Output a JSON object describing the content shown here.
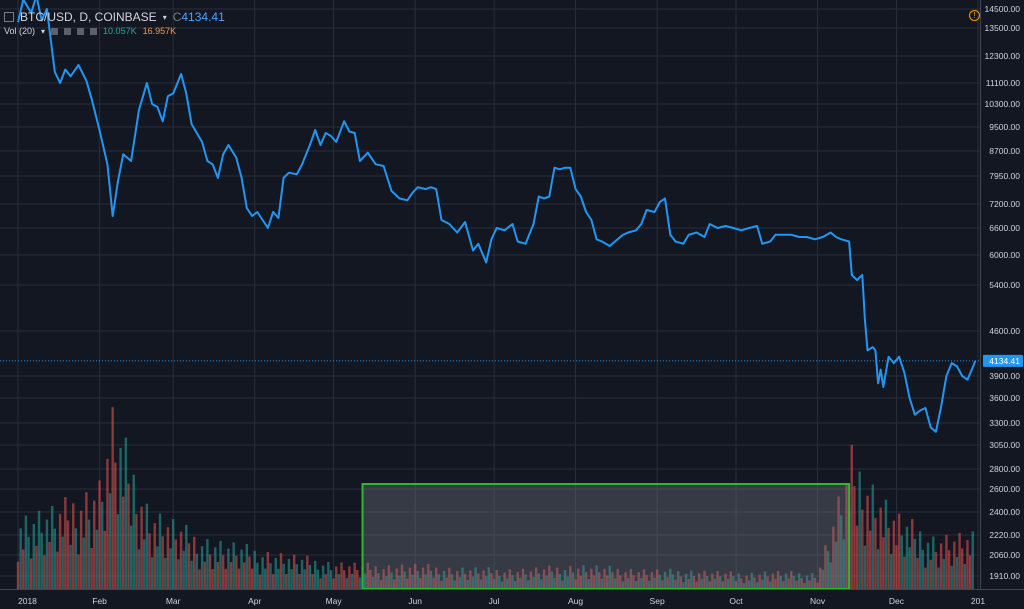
{
  "header": {
    "symbol": "BTC/USD, D, COINBASE",
    "ohlc_prefix": "C",
    "last": "4134.41",
    "vol_label": "Vol (20)",
    "vol_value1": "10.057K",
    "vol_value2": "16.957K",
    "menu_icon": "menu-icon",
    "warn_icon": "warning-icon"
  },
  "colors": {
    "background": "#131722",
    "grid": "#2a2e39",
    "line": "#2196f3",
    "vol_up": "#26a69a",
    "vol_down": "#ef5350",
    "highlight": "#2eb82e",
    "text": "#d1d4dc",
    "price_tag": "#2196f3"
  },
  "chart_data": {
    "type": "line",
    "symbol": "BTC/USD",
    "interval": "D",
    "exchange": "COINBASE",
    "x_labels": [
      "2018",
      "Feb",
      "Mar",
      "Apr",
      "May",
      "Jun",
      "Jul",
      "Aug",
      "Sep",
      "Oct",
      "Nov",
      "Dec",
      "201"
    ],
    "y_ticks": [
      "14500.00",
      "13500.00",
      "12300.00",
      "11100.00",
      "10300.00",
      "9500.00",
      "8700.00",
      "7950.00",
      "7200.00",
      "6600.00",
      "6000.00",
      "5400.00",
      "4600.00",
      "3900.00",
      "3600.00",
      "3300.00",
      "3050.00",
      "2800.00",
      "2600.00",
      "2400.00",
      "2220.00",
      "2060.00",
      "1910.00"
    ],
    "last_price": "4134.41",
    "grid": true,
    "series": [
      {
        "points": [
          [
            "2018-01-01",
            13800
          ],
          [
            "2018-01-03",
            15000
          ],
          [
            "2018-01-06",
            14300
          ],
          [
            "2018-01-08",
            15200
          ],
          [
            "2018-01-10",
            13900
          ],
          [
            "2018-01-12",
            14500
          ],
          [
            "2018-01-15",
            11600
          ],
          [
            "2018-01-17",
            11100
          ],
          [
            "2018-01-19",
            11700
          ],
          [
            "2018-01-21",
            11400
          ],
          [
            "2018-01-24",
            11900
          ],
          [
            "2018-01-27",
            11200
          ],
          [
            "2018-01-29",
            10500
          ],
          [
            "2018-02-01",
            9400
          ],
          [
            "2018-02-04",
            8300
          ],
          [
            "2018-02-06",
            6900
          ],
          [
            "2018-02-08",
            7800
          ],
          [
            "2018-02-10",
            8600
          ],
          [
            "2018-02-13",
            8400
          ],
          [
            "2018-02-16",
            10100
          ],
          [
            "2018-02-19",
            11100
          ],
          [
            "2018-02-21",
            10300
          ],
          [
            "2018-02-23",
            10200
          ],
          [
            "2018-02-25",
            9700
          ],
          [
            "2018-02-27",
            10600
          ],
          [
            "2018-03-01",
            10700
          ],
          [
            "2018-03-04",
            11500
          ],
          [
            "2018-03-06",
            10700
          ],
          [
            "2018-03-08",
            9600
          ],
          [
            "2018-03-10",
            9300
          ],
          [
            "2018-03-12",
            9000
          ],
          [
            "2018-03-14",
            8400
          ],
          [
            "2018-03-16",
            8300
          ],
          [
            "2018-03-18",
            7900
          ],
          [
            "2018-03-20",
            8600
          ],
          [
            "2018-03-22",
            8900
          ],
          [
            "2018-03-25",
            8500
          ],
          [
            "2018-03-27",
            7900
          ],
          [
            "2018-03-29",
            7100
          ],
          [
            "2018-03-31",
            6900
          ],
          [
            "2018-04-02",
            7000
          ],
          [
            "2018-04-04",
            6800
          ],
          [
            "2018-04-06",
            6600
          ],
          [
            "2018-04-08",
            7000
          ],
          [
            "2018-04-10",
            6850
          ],
          [
            "2018-04-12",
            7900
          ],
          [
            "2018-04-14",
            8050
          ],
          [
            "2018-04-17",
            8000
          ],
          [
            "2018-04-19",
            8300
          ],
          [
            "2018-04-22",
            8900
          ],
          [
            "2018-04-24",
            9400
          ],
          [
            "2018-04-26",
            8900
          ],
          [
            "2018-04-28",
            9300
          ],
          [
            "2018-04-30",
            9200
          ],
          [
            "2018-05-02",
            9000
          ],
          [
            "2018-05-05",
            9700
          ],
          [
            "2018-05-07",
            9350
          ],
          [
            "2018-05-09",
            9300
          ],
          [
            "2018-05-11",
            8400
          ],
          [
            "2018-05-14",
            8650
          ],
          [
            "2018-05-17",
            8300
          ],
          [
            "2018-05-20",
            8250
          ],
          [
            "2018-05-23",
            7550
          ],
          [
            "2018-05-26",
            7350
          ],
          [
            "2018-05-29",
            7300
          ],
          [
            "2018-05-31",
            7500
          ],
          [
            "2018-06-02",
            7650
          ],
          [
            "2018-06-05",
            7600
          ],
          [
            "2018-06-07",
            7650
          ],
          [
            "2018-06-09",
            7600
          ],
          [
            "2018-06-11",
            6800
          ],
          [
            "2018-06-14",
            6700
          ],
          [
            "2018-06-17",
            6500
          ],
          [
            "2018-06-20",
            6750
          ],
          [
            "2018-06-23",
            6100
          ],
          [
            "2018-06-25",
            6250
          ],
          [
            "2018-06-28",
            5850
          ],
          [
            "2018-06-30",
            6350
          ],
          [
            "2018-07-02",
            6600
          ],
          [
            "2018-07-05",
            6550
          ],
          [
            "2018-07-08",
            6700
          ],
          [
            "2018-07-10",
            6300
          ],
          [
            "2018-07-13",
            6250
          ],
          [
            "2018-07-16",
            6700
          ],
          [
            "2018-07-18",
            7400
          ],
          [
            "2018-07-20",
            7350
          ],
          [
            "2018-07-22",
            7400
          ],
          [
            "2018-07-24",
            8200
          ],
          [
            "2018-07-26",
            8150
          ],
          [
            "2018-07-28",
            8200
          ],
          [
            "2018-07-30",
            8200
          ],
          [
            "2018-08-01",
            7600
          ],
          [
            "2018-08-03",
            7400
          ],
          [
            "2018-08-05",
            7000
          ],
          [
            "2018-08-07",
            6800
          ],
          [
            "2018-08-09",
            6350
          ],
          [
            "2018-08-11",
            6300
          ],
          [
            "2018-08-14",
            6200
          ],
          [
            "2018-08-16",
            6300
          ],
          [
            "2018-08-19",
            6450
          ],
          [
            "2018-08-21",
            6500
          ],
          [
            "2018-08-24",
            6550
          ],
          [
            "2018-08-26",
            6700
          ],
          [
            "2018-08-28",
            7050
          ],
          [
            "2018-08-31",
            7000
          ],
          [
            "2018-09-02",
            7250
          ],
          [
            "2018-09-04",
            7350
          ],
          [
            "2018-09-06",
            6450
          ],
          [
            "2018-09-08",
            6300
          ],
          [
            "2018-09-11",
            6250
          ],
          [
            "2018-09-13",
            6450
          ],
          [
            "2018-09-16",
            6500
          ],
          [
            "2018-09-19",
            6400
          ],
          [
            "2018-09-21",
            6700
          ],
          [
            "2018-09-24",
            6600
          ],
          [
            "2018-09-27",
            6650
          ],
          [
            "2018-09-30",
            6600
          ],
          [
            "2018-10-03",
            6550
          ],
          [
            "2018-10-06",
            6600
          ],
          [
            "2018-10-09",
            6650
          ],
          [
            "2018-10-11",
            6250
          ],
          [
            "2018-10-14",
            6300
          ],
          [
            "2018-10-16",
            6450
          ],
          [
            "2018-10-19",
            6450
          ],
          [
            "2018-10-22",
            6450
          ],
          [
            "2018-10-25",
            6400
          ],
          [
            "2018-10-28",
            6400
          ],
          [
            "2018-10-31",
            6350
          ],
          [
            "2018-11-03",
            6400
          ],
          [
            "2018-11-06",
            6500
          ],
          [
            "2018-11-08",
            6400
          ],
          [
            "2018-11-10",
            6350
          ],
          [
            "2018-11-13",
            6300
          ],
          [
            "2018-11-14",
            5600
          ],
          [
            "2018-11-16",
            5500
          ],
          [
            "2018-11-18",
            5600
          ],
          [
            "2018-11-19",
            4800
          ],
          [
            "2018-11-20",
            4300
          ],
          [
            "2018-11-22",
            4350
          ],
          [
            "2018-11-23",
            4300
          ],
          [
            "2018-11-24",
            3800
          ],
          [
            "2018-11-25",
            4000
          ],
          [
            "2018-11-26",
            3750
          ],
          [
            "2018-11-28",
            4200
          ],
          [
            "2018-11-30",
            4100
          ],
          [
            "2018-12-02",
            4200
          ],
          [
            "2018-12-04",
            3950
          ],
          [
            "2018-12-06",
            3600
          ],
          [
            "2018-12-08",
            3400
          ],
          [
            "2018-12-10",
            3450
          ],
          [
            "2018-12-12",
            3480
          ],
          [
            "2018-12-14",
            3250
          ],
          [
            "2018-12-16",
            3200
          ],
          [
            "2018-12-18",
            3500
          ],
          [
            "2018-12-20",
            3900
          ],
          [
            "2018-12-22",
            4100
          ],
          [
            "2018-12-24",
            4050
          ],
          [
            "2018-12-26",
            3900
          ],
          [
            "2018-12-28",
            3850
          ],
          [
            "2018-12-31",
            4134.41
          ]
        ]
      }
    ],
    "volume": {
      "dates": [
        "2018-01-01",
        "2018-01-16",
        "2018-02-01",
        "2018-02-06",
        "2018-02-20",
        "2018-03-10",
        "2018-03-20",
        "2018-04-01",
        "2018-04-15",
        "2018-05-01",
        "2018-05-15",
        "2018-06-01",
        "2018-06-15",
        "2018-07-01",
        "2018-07-15",
        "2018-08-01",
        "2018-08-15",
        "2018-09-01",
        "2018-09-15",
        "2018-10-01",
        "2018-10-15",
        "2018-11-01",
        "2018-11-14",
        "2018-11-20",
        "2018-12-01",
        "2018-12-15",
        "2018-12-28"
      ],
      "values": [
        55,
        60,
        80,
        130,
        60,
        40,
        35,
        30,
        25,
        20,
        18,
        18,
        16,
        15,
        15,
        18,
        16,
        14,
        14,
        12,
        13,
        12,
        100,
        85,
        55,
        40,
        40
      ],
      "directions": [
        "up",
        "down",
        "down",
        "up",
        "up",
        "down",
        "down",
        "up",
        "up",
        "down",
        "down",
        "down",
        "up",
        "up",
        "up",
        "down",
        "down",
        "up",
        "down",
        "up",
        "down",
        "up",
        "down",
        "down",
        "up",
        "down",
        "up"
      ]
    },
    "highlight_box": {
      "x_range": [
        "2018-05-12",
        "2018-11-13"
      ],
      "y_range": [
        1910,
        2660
      ]
    }
  }
}
